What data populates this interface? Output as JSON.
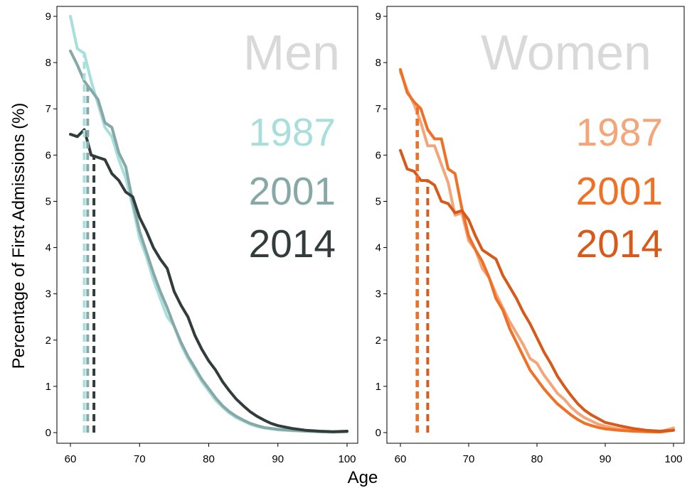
{
  "chart_data": {
    "type": "line",
    "ylabel": "Percentage of First Admissions (%)",
    "xlabel": "Age",
    "xlim": [
      60,
      100
    ],
    "ylim": [
      0,
      9
    ],
    "xticks": [
      60,
      70,
      80,
      90,
      100
    ],
    "yticks": [
      0,
      1,
      2,
      3,
      4,
      5,
      6,
      7,
      8,
      9
    ],
    "panels": [
      {
        "title": "Men",
        "title_color": "#d9d9d9",
        "x": [
          60,
          61,
          62,
          63,
          64,
          65,
          66,
          67,
          68,
          69,
          70,
          71,
          72,
          73,
          74,
          75,
          76,
          77,
          78,
          79,
          80,
          81,
          82,
          83,
          84,
          85,
          86,
          87,
          88,
          89,
          90,
          92,
          94,
          96,
          98,
          100
        ],
        "series": [
          {
            "name": "1987",
            "color": "#a8dfdc",
            "values": [
              9.0,
              8.3,
              8.2,
              7.6,
              7.1,
              6.6,
              6.4,
              5.9,
              5.5,
              4.9,
              4.2,
              3.8,
              3.3,
              2.9,
              2.5,
              2.3,
              1.9,
              1.6,
              1.35,
              1.1,
              0.9,
              0.7,
              0.55,
              0.42,
              0.32,
              0.25,
              0.18,
              0.13,
              0.1,
              0.08,
              0.06,
              0.04,
              0.03,
              0.02,
              0.01,
              0.02
            ],
            "median": 62.0
          },
          {
            "name": "2001",
            "color": "#86a9a8",
            "values": [
              8.25,
              7.95,
              7.6,
              7.4,
              7.2,
              6.7,
              6.6,
              6.05,
              5.75,
              5.0,
              4.35,
              3.9,
              3.45,
              3.05,
              2.7,
              2.3,
              1.95,
              1.65,
              1.4,
              1.15,
              0.95,
              0.75,
              0.58,
              0.45,
              0.35,
              0.27,
              0.2,
              0.15,
              0.11,
              0.09,
              0.07,
              0.05,
              0.03,
              0.02,
              0.01,
              0.02
            ],
            "median": 62.5
          },
          {
            "name": "2014",
            "color": "#333c3c",
            "values": [
              6.45,
              6.4,
              6.55,
              6.0,
              5.95,
              5.9,
              5.6,
              5.45,
              5.2,
              5.1,
              4.65,
              4.35,
              4.0,
              3.75,
              3.55,
              3.05,
              2.75,
              2.5,
              2.1,
              1.8,
              1.55,
              1.35,
              1.1,
              0.9,
              0.72,
              0.58,
              0.45,
              0.35,
              0.27,
              0.2,
              0.15,
              0.09,
              0.05,
              0.03,
              0.02,
              0.03
            ],
            "median": 63.4
          }
        ]
      },
      {
        "title": "Women",
        "title_color": "#d9d9d9",
        "x": [
          60,
          61,
          62,
          63,
          64,
          65,
          66,
          67,
          68,
          69,
          70,
          71,
          72,
          73,
          74,
          75,
          76,
          77,
          78,
          79,
          80,
          81,
          82,
          83,
          84,
          85,
          86,
          87,
          88,
          89,
          90,
          92,
          94,
          96,
          98,
          100
        ],
        "series": [
          {
            "name": "1987",
            "color": "#f4a57a",
            "values": [
              7.8,
              7.4,
              7.1,
              6.7,
              6.2,
              6.2,
              5.8,
              5.4,
              4.7,
              4.75,
              4.15,
              3.95,
              3.55,
              3.35,
              3.0,
              2.7,
              2.4,
              2.15,
              1.9,
              1.6,
              1.5,
              1.25,
              1.05,
              0.85,
              0.72,
              0.55,
              0.42,
              0.32,
              0.25,
              0.18,
              0.14,
              0.08,
              0.05,
              0.03,
              0.02,
              0.1
            ],
            "median": 62.4
          },
          {
            "name": "2001",
            "color": "#f07126",
            "values": [
              7.85,
              7.35,
              7.15,
              7.0,
              6.55,
              6.35,
              6.35,
              5.7,
              5.6,
              4.85,
              4.25,
              3.95,
              3.7,
              3.35,
              2.9,
              2.65,
              2.25,
              1.95,
              1.65,
              1.35,
              1.15,
              0.95,
              0.78,
              0.62,
              0.5,
              0.38,
              0.28,
              0.2,
              0.15,
              0.11,
              0.08,
              0.05,
              0.03,
              0.02,
              0.01,
              0.05
            ],
            "median": 62.5
          },
          {
            "name": "2014",
            "color": "#d85a1a",
            "values": [
              6.1,
              5.7,
              5.65,
              5.45,
              5.45,
              5.35,
              5.0,
              4.95,
              4.75,
              4.8,
              4.6,
              4.25,
              3.95,
              3.85,
              3.75,
              3.4,
              3.15,
              2.9,
              2.6,
              2.35,
              2.05,
              1.75,
              1.5,
              1.22,
              1.0,
              0.8,
              0.62,
              0.48,
              0.38,
              0.3,
              0.22,
              0.15,
              0.09,
              0.05,
              0.03,
              0.05
            ],
            "median": 64.0
          }
        ]
      }
    ]
  }
}
